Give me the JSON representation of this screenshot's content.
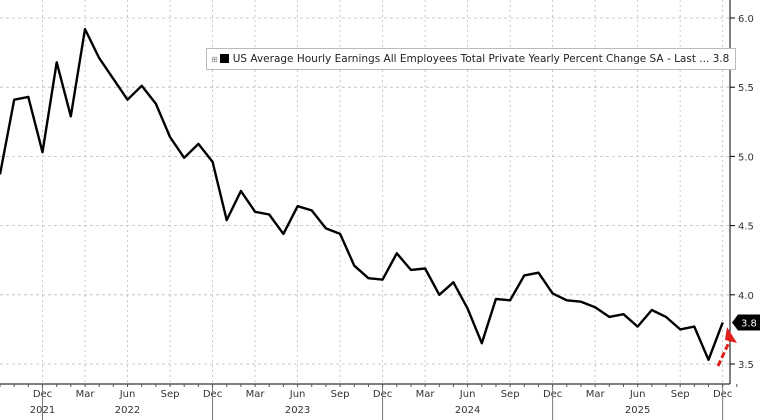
{
  "chart_data": {
    "type": "line",
    "title": "",
    "xlabel": "",
    "ylabel": "",
    "ylim": [
      3.4,
      6.1
    ],
    "y_ticks": [
      "3.5",
      "4.0",
      "4.5",
      "5.0",
      "5.5",
      "6.0"
    ],
    "y_axis_position": "right",
    "grid": true,
    "legend_position": "top-center",
    "x_tick_labels": [
      {
        "month": "Dec",
        "year": "2021"
      },
      {
        "month": "Mar",
        "year": ""
      },
      {
        "month": "Jun",
        "year": "2022"
      },
      {
        "month": "Sep",
        "year": ""
      },
      {
        "month": "Dec",
        "year": ""
      },
      {
        "month": "Mar",
        "year": ""
      },
      {
        "month": "Jun",
        "year": "2023"
      },
      {
        "month": "Sep",
        "year": ""
      },
      {
        "month": "Dec",
        "year": ""
      },
      {
        "month": "Mar",
        "year": ""
      },
      {
        "month": "Jun",
        "year": "2024"
      },
      {
        "month": "Sep",
        "year": ""
      },
      {
        "month": "Dec",
        "year": ""
      },
      {
        "month": "Mar",
        "year": ""
      },
      {
        "month": "Jun",
        "year": "2025"
      },
      {
        "month": "Sep",
        "year": ""
      },
      {
        "month": "Dec",
        "year": ""
      }
    ],
    "series": [
      {
        "name": "US Average Hourly Earnings All Employees Total Private Yearly Percent Change SA - Last ... 3.8",
        "color": "#000000",
        "x": [
          "2021-09",
          "2021-10",
          "2021-11",
          "2021-12",
          "2022-01",
          "2022-02",
          "2022-03",
          "2022-04",
          "2022-05",
          "2022-06",
          "2022-07",
          "2022-08",
          "2022-09",
          "2022-10",
          "2022-11",
          "2022-12",
          "2023-01",
          "2023-02",
          "2023-03",
          "2023-04",
          "2023-05",
          "2023-06",
          "2023-07",
          "2023-08",
          "2023-09",
          "2023-10",
          "2023-11",
          "2023-12",
          "2024-01",
          "2024-02",
          "2024-03",
          "2024-04",
          "2024-05",
          "2024-06",
          "2024-07",
          "2024-08",
          "2024-09",
          "2024-10",
          "2024-11",
          "2024-12",
          "2025-01",
          "2025-02",
          "2025-03",
          "2025-04",
          "2025-05",
          "2025-06",
          "2025-07",
          "2025-08",
          "2025-09",
          "2025-10",
          "2025-11",
          "2025-12"
        ],
        "values": [
          4.87,
          5.41,
          5.43,
          5.03,
          5.68,
          5.29,
          5.92,
          5.71,
          5.56,
          5.41,
          5.51,
          5.38,
          5.14,
          4.99,
          5.09,
          4.96,
          4.54,
          4.75,
          4.6,
          4.58,
          4.44,
          4.64,
          4.61,
          4.48,
          4.44,
          4.21,
          4.12,
          4.11,
          4.3,
          4.18,
          4.19,
          4.0,
          4.09,
          3.9,
          3.65,
          3.97,
          3.96,
          4.14,
          4.16,
          4.01,
          3.96,
          3.95,
          3.91,
          3.84,
          3.86,
          3.77,
          3.89,
          3.84,
          3.75,
          3.77,
          3.53,
          3.8
        ]
      }
    ],
    "last_value_label": "3.8",
    "annotation": {
      "type": "dashed-arrow",
      "color": "#e0201b",
      "direction": "up"
    }
  }
}
